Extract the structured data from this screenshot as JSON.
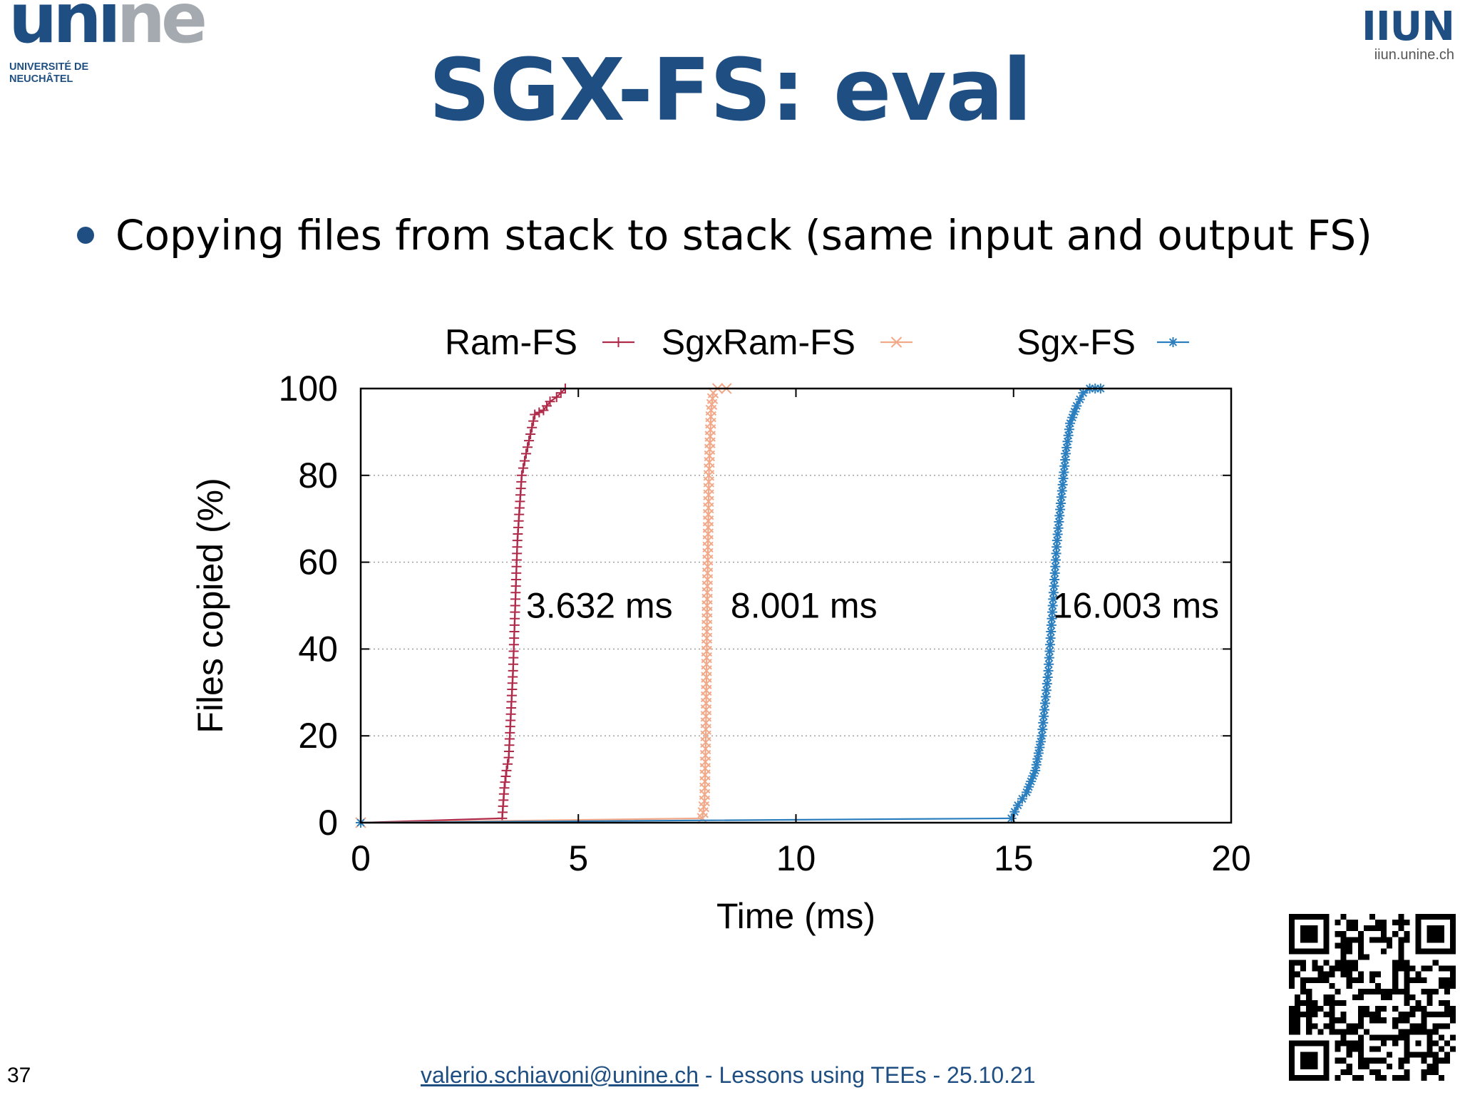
{
  "header": {
    "logo_left_main_a": "uni",
    "logo_left_main_b": "ne",
    "logo_left_sub_line1": "UNIVERSITÉ DE",
    "logo_left_sub_line2": "NEUCHÂTEL",
    "logo_right_main": "IIUN",
    "logo_right_url": "iiun.unine.ch",
    "title": "SGX-FS: eval"
  },
  "content": {
    "bullet": "Copying files from stack to stack (same input and output FS)"
  },
  "chart_data": {
    "type": "line",
    "subtype": "cdf",
    "xlabel": "Time (ms)",
    "ylabel": "Files copied (%)",
    "xlim": [
      0,
      20
    ],
    "ylim": [
      0,
      100
    ],
    "xticks": [
      "0",
      "5",
      "10",
      "15",
      "20"
    ],
    "yticks": [
      "0",
      "20",
      "40",
      "60",
      "80",
      "100"
    ],
    "grid": "horizontal-dotted",
    "legend_position": "top, outside",
    "series": [
      {
        "name": "Ram-FS",
        "marker": "+",
        "color": "#b02a4a",
        "x": [
          0,
          3.25,
          3.3,
          3.35,
          3.4,
          3.45,
          3.5,
          3.55,
          3.6,
          3.7,
          3.8,
          4.0,
          4.2,
          4.35,
          4.5,
          4.6,
          4.7
        ],
        "y": [
          0,
          1,
          8,
          12,
          15,
          25,
          35,
          50,
          65,
          80,
          85,
          94,
          95,
          97,
          98,
          99,
          100
        ]
      },
      {
        "name": "SgxRam-FS",
        "marker": "x",
        "color": "#f2a98a",
        "x": [
          0,
          7.85,
          7.9,
          7.93,
          7.96,
          8.0,
          8.05,
          8.1,
          8.2,
          8.4
        ],
        "y": [
          0,
          1,
          5,
          20,
          50,
          80,
          95,
          99,
          100,
          100
        ]
      },
      {
        "name": "Sgx-FS",
        "marker": "*",
        "color": "#2c7fbe",
        "x": [
          0,
          14.95,
          15.1,
          15.3,
          15.5,
          15.65,
          15.8,
          15.9,
          16.0,
          16.1,
          16.2,
          16.3,
          16.45,
          16.6,
          16.75,
          17.0
        ],
        "y": [
          0,
          1,
          4,
          7,
          12,
          20,
          35,
          50,
          65,
          75,
          85,
          92,
          96,
          99,
          100,
          100
        ]
      }
    ],
    "annotations": [
      {
        "text": "3.632 ms",
        "x": 3.8,
        "y": 50
      },
      {
        "text": "8.001 ms",
        "x": 8.5,
        "y": 50
      },
      {
        "text": "16.003 ms",
        "x": 15.9,
        "y": 50
      }
    ]
  },
  "footer": {
    "slide_number": "37",
    "email": "valerio.schiavoni@unine.ch",
    "rest": " - Lessons using TEEs - 25.10.21"
  },
  "qr": {
    "icon": "qr-code-icon"
  }
}
